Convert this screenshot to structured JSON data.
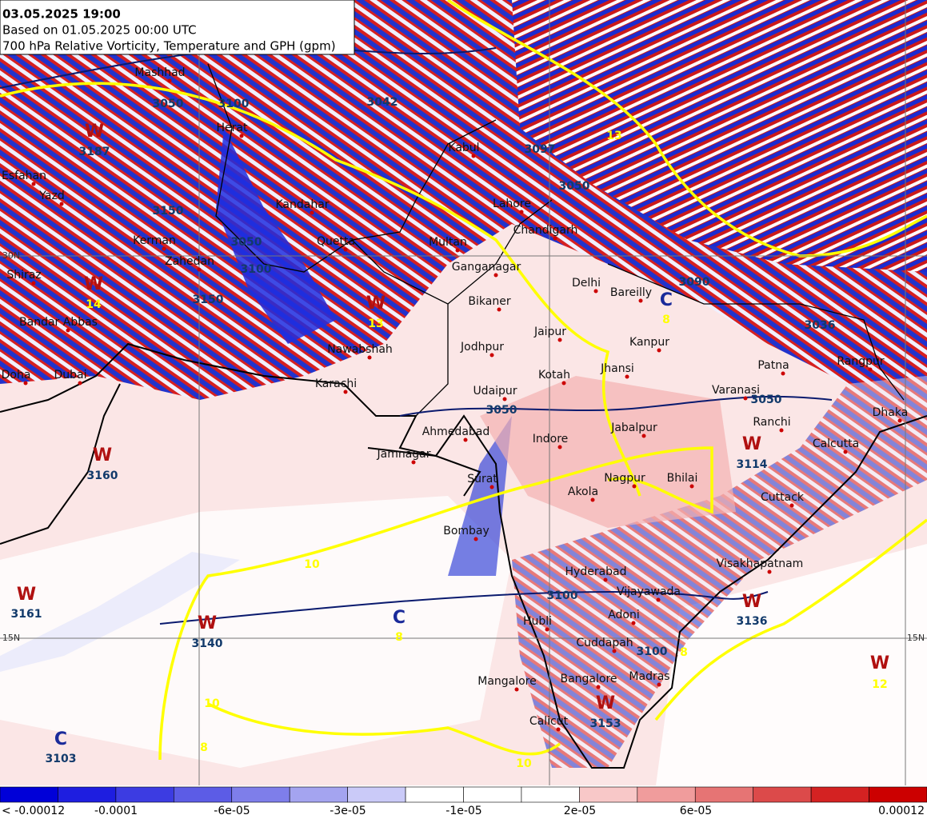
{
  "header": {
    "date": "03.05.2025 19:00",
    "based_on": "Based on 01.05.2025 00:00 UTC",
    "description": "700 hPa Relative Vorticity, Temperature and GPH (gpm)"
  },
  "cities": [
    "Mashhad",
    "Herat",
    "Kabul",
    "Kandahar",
    "Quetta",
    "Kerman",
    "Zahedan",
    "Shiraz",
    "Bandar Abbas",
    "Yazd",
    "Esfahan",
    "Doha",
    "Dubai",
    "Nawabshah",
    "Karachi",
    "Multan",
    "Ganganagar",
    "Lahore",
    "Chandigarh",
    "Delhi",
    "Bareilly",
    "Bikaner",
    "Jaipur",
    "Jodhpur",
    "Kanpur",
    "Jhansi",
    "Kotah",
    "Udaipur",
    "Varanasi",
    "Patna",
    "Rangpur",
    "Dhaka",
    "Ranchi",
    "Calcutta",
    "Ahmedabad",
    "Indore",
    "Jabalpur",
    "Jamnagar",
    "Surat",
    "Nagpur",
    "Bhilai",
    "Akola",
    "Cuttack",
    "Bombay",
    "Hyderabad",
    "Visakhapatnam",
    "Vijayawada",
    "Adoni",
    "Hubli",
    "Cuddapah",
    "Madras",
    "Mangalore",
    "Bangalore",
    "Calicut"
  ],
  "systems": [
    {
      "kind": "W",
      "value": "3187"
    },
    {
      "kind": "W",
      "value": "14"
    },
    {
      "kind": "W",
      "value": "3160"
    },
    {
      "kind": "W",
      "value": "3161"
    },
    {
      "kind": "W",
      "value": "3140"
    },
    {
      "kind": "C",
      "value": "8"
    },
    {
      "kind": "C",
      "value": "3103"
    },
    {
      "kind": "W",
      "value": "12"
    },
    {
      "kind": "C",
      "value": "8"
    },
    {
      "kind": "W",
      "value": "3114"
    },
    {
      "kind": "W",
      "value": "3136"
    },
    {
      "kind": "W",
      "value": "3153"
    },
    {
      "kind": "W",
      "value": "13"
    }
  ],
  "gph_labels": [
    "3050",
    "3150",
    "3150",
    "3100",
    "3050",
    "3050",
    "3100",
    "3100",
    "3100",
    "3050",
    "3042",
    "3097",
    "3050",
    "3036",
    "3090"
  ],
  "temperature_labels": [
    "10",
    "10",
    "8",
    "10",
    "8",
    "13"
  ],
  "latitude_labels": [
    "30N",
    "15N",
    "15N"
  ],
  "colorbar": {
    "labels": [
      "< -0.00012",
      "-0.0001",
      "-6e-05",
      "-3e-05",
      "-1e-05",
      "2e-05",
      "6e-05",
      "0.00012"
    ]
  }
}
